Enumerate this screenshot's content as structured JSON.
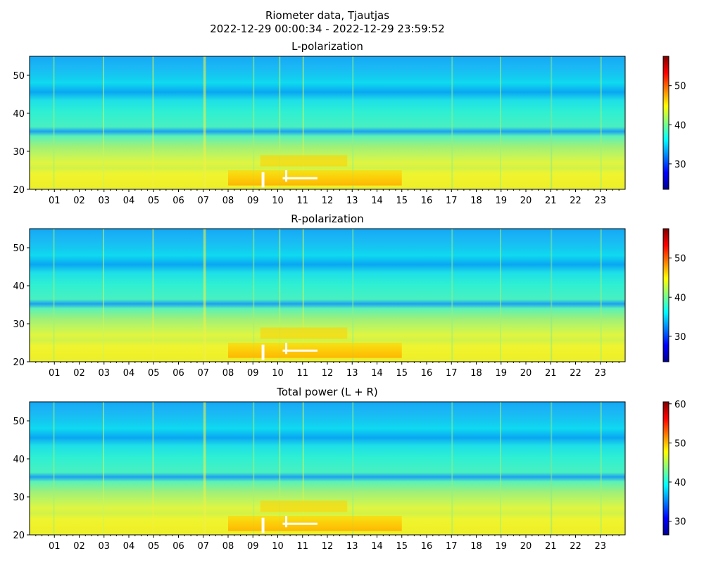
{
  "figure": {
    "title_line1": "Riometer data, Tjautjas",
    "title_line2": "2022-12-29 00:00:34 - 2022-12-29 23:59:52"
  },
  "colormap": "jet",
  "chart_data": [
    {
      "type": "heatmap",
      "title": "L-polarization",
      "xlabel": "",
      "ylabel": "",
      "x_ticks": [
        "01",
        "02",
        "03",
        "04",
        "05",
        "06",
        "07",
        "08",
        "09",
        "10",
        "11",
        "12",
        "13",
        "14",
        "15",
        "16",
        "17",
        "18",
        "19",
        "20",
        "21",
        "22",
        "23"
      ],
      "xlim_hours": [
        0,
        24
      ],
      "ylim": [
        20,
        55
      ],
      "y_ticks": [
        20,
        30,
        40,
        50
      ],
      "colorbar": {
        "range": [
          23.5,
          57.5
        ],
        "ticks": [
          30,
          40,
          50
        ]
      },
      "saturated_region": {
        "x_hours": [
          9.3,
          11.6
        ],
        "y": [
          21,
          24
        ],
        "note_color": "#ffffff"
      }
    },
    {
      "type": "heatmap",
      "title": "R-polarization",
      "xlabel": "",
      "ylabel": "",
      "x_ticks": [
        "01",
        "02",
        "03",
        "04",
        "05",
        "06",
        "07",
        "08",
        "09",
        "10",
        "11",
        "12",
        "13",
        "14",
        "15",
        "16",
        "17",
        "18",
        "19",
        "20",
        "21",
        "22",
        "23"
      ],
      "xlim_hours": [
        0,
        24
      ],
      "ylim": [
        20,
        55
      ],
      "y_ticks": [
        20,
        30,
        40,
        50
      ],
      "colorbar": {
        "range": [
          23.5,
          57.5
        ],
        "ticks": [
          30,
          40,
          50
        ]
      },
      "saturated_region": {
        "x_hours": [
          9.3,
          11.6
        ],
        "y": [
          21,
          24
        ],
        "note_color": "#ffffff"
      }
    },
    {
      "type": "heatmap",
      "title": "Total power (L + R)",
      "xlabel": "",
      "ylabel": "",
      "x_ticks": [
        "01",
        "02",
        "03",
        "04",
        "05",
        "06",
        "07",
        "08",
        "09",
        "10",
        "11",
        "12",
        "13",
        "14",
        "15",
        "16",
        "17",
        "18",
        "19",
        "20",
        "21",
        "22",
        "23"
      ],
      "xlim_hours": [
        0,
        24
      ],
      "ylim": [
        20,
        55
      ],
      "y_ticks": [
        20,
        30,
        40,
        50
      ],
      "colorbar": {
        "range": [
          26.5,
          60.5
        ],
        "ticks": [
          30,
          40,
          50,
          60
        ]
      },
      "saturated_region": {
        "x_hours": [
          9.3,
          11.6
        ],
        "y": [
          21,
          24
        ],
        "note_color": "#ffffff"
      }
    }
  ]
}
